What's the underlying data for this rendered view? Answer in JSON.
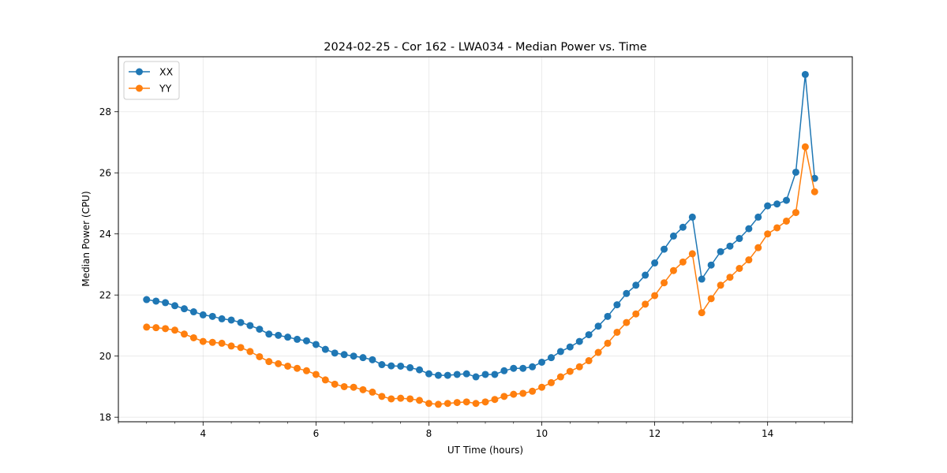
{
  "chart_data": {
    "type": "line",
    "title": "2024-02-25 - Cor 162 - LWA034 - Median Power vs. Time",
    "xlabel": "UT Time (hours)",
    "ylabel": "Median Power (CPU)",
    "xlim": [
      2.5,
      15.5
    ],
    "ylim": [
      17.85,
      29.8
    ],
    "xticks": [
      4,
      6,
      8,
      10,
      12,
      14
    ],
    "yticks": [
      18,
      20,
      22,
      24,
      26,
      28
    ],
    "grid": true,
    "legend_position": "top-left",
    "x": [
      3.0,
      3.167,
      3.333,
      3.5,
      3.667,
      3.833,
      4.0,
      4.167,
      4.333,
      4.5,
      4.667,
      4.833,
      5.0,
      5.167,
      5.333,
      5.5,
      5.667,
      5.833,
      6.0,
      6.167,
      6.333,
      6.5,
      6.667,
      6.833,
      7.0,
      7.167,
      7.333,
      7.5,
      7.667,
      7.833,
      8.0,
      8.167,
      8.333,
      8.5,
      8.667,
      8.833,
      9.0,
      9.167,
      9.333,
      9.5,
      9.667,
      9.833,
      10.0,
      10.167,
      10.333,
      10.5,
      10.667,
      10.833,
      11.0,
      11.167,
      11.333,
      11.5,
      11.667,
      11.833,
      12.0,
      12.167,
      12.333,
      12.5,
      12.667,
      12.833,
      13.0,
      13.167,
      13.333,
      13.5,
      13.667,
      13.833,
      14.0,
      14.167,
      14.333,
      14.5,
      14.667,
      14.833
    ],
    "series": [
      {
        "name": "XX",
        "color": "#1f77b4",
        "values": [
          21.85,
          21.8,
          21.75,
          21.65,
          21.55,
          21.45,
          21.35,
          21.3,
          21.22,
          21.18,
          21.1,
          21.0,
          20.88,
          20.72,
          20.68,
          20.62,
          20.55,
          20.5,
          20.38,
          20.22,
          20.1,
          20.05,
          20.0,
          19.95,
          19.88,
          19.72,
          19.68,
          19.67,
          19.62,
          19.55,
          19.42,
          19.37,
          19.37,
          19.4,
          19.42,
          19.32,
          19.4,
          19.4,
          19.52,
          19.6,
          19.6,
          19.65,
          19.8,
          19.95,
          20.15,
          20.3,
          20.48,
          20.7,
          20.98,
          21.3,
          21.68,
          22.05,
          22.32,
          22.65,
          23.05,
          23.5,
          23.93,
          24.22,
          24.55,
          22.52,
          22.98,
          23.42,
          23.6,
          23.85,
          24.17,
          24.55,
          24.92,
          24.98,
          25.1,
          26.02,
          29.22,
          25.82
        ]
      },
      {
        "name": "YY",
        "color": "#ff7f0e",
        "values": [
          20.95,
          20.93,
          20.9,
          20.85,
          20.72,
          20.6,
          20.48,
          20.45,
          20.42,
          20.33,
          20.28,
          20.15,
          19.98,
          19.82,
          19.75,
          19.67,
          19.6,
          19.52,
          19.4,
          19.22,
          19.08,
          19.0,
          18.98,
          18.9,
          18.82,
          18.68,
          18.6,
          18.62,
          18.6,
          18.55,
          18.45,
          18.42,
          18.45,
          18.48,
          18.5,
          18.45,
          18.5,
          18.58,
          18.68,
          18.75,
          18.78,
          18.85,
          18.98,
          19.13,
          19.32,
          19.5,
          19.65,
          19.85,
          20.12,
          20.42,
          20.78,
          21.1,
          21.38,
          21.7,
          21.98,
          22.4,
          22.8,
          23.08,
          23.35,
          21.42,
          21.88,
          22.32,
          22.58,
          22.87,
          23.15,
          23.55,
          24.0,
          24.2,
          24.42,
          24.7,
          26.85,
          25.38
        ]
      }
    ]
  }
}
